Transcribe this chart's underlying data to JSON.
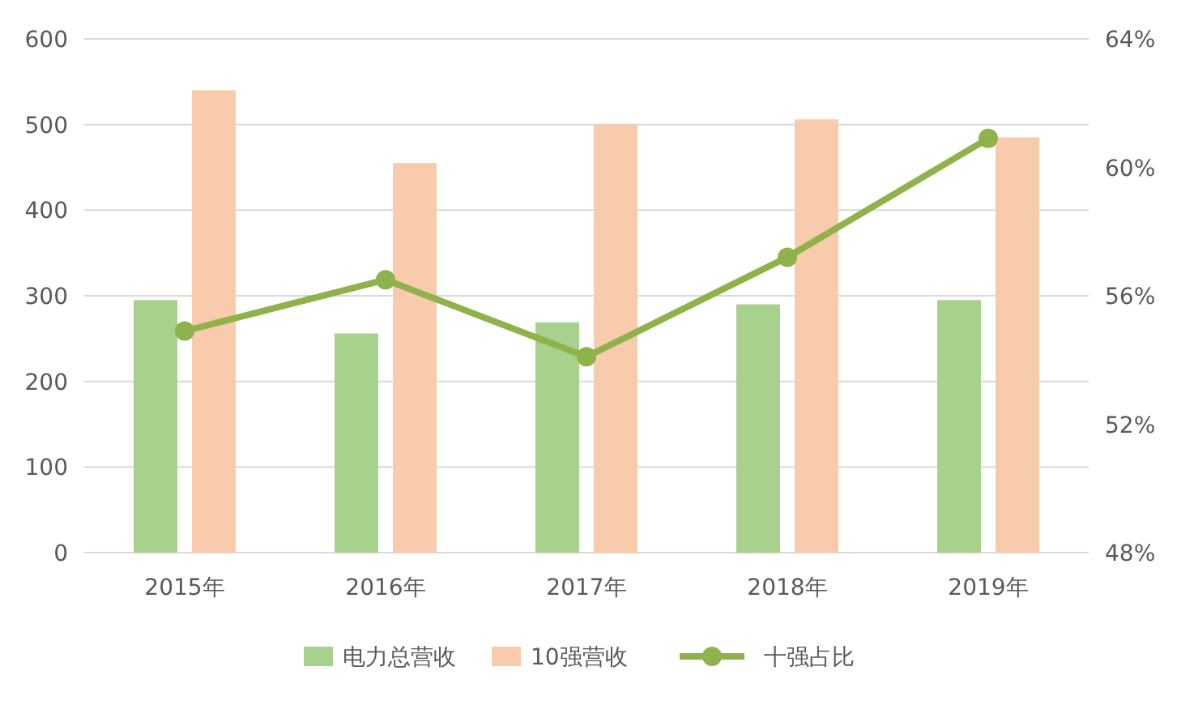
{
  "chart_data": {
    "type": "bar",
    "categories": [
      "2015年",
      "2016年",
      "2017年",
      "2018年",
      "2019年"
    ],
    "series": [
      {
        "name": "电力总营收",
        "color": "#a9d18e",
        "values": [
          295,
          256,
          269,
          290,
          295
        ]
      },
      {
        "name": "10强营收",
        "color": "#f8cbad",
        "values": [
          540,
          455,
          500,
          506,
          485
        ]
      },
      {
        "name": "十强占比",
        "type": "line",
        "axis": "y2",
        "color": "#8fb24a",
        "marker": "circle",
        "values": [
          54.9,
          56.5,
          54.1,
          57.2,
          60.9
        ]
      }
    ],
    "ylim": [
      0,
      600
    ],
    "yticks": [
      0,
      100,
      200,
      300,
      400,
      500,
      600
    ],
    "y2lim": [
      48,
      64
    ],
    "y2ticks": [
      {
        "value": 48,
        "label": "48%"
      },
      {
        "value": 52,
        "label": "52%"
      },
      {
        "value": 56,
        "label": "56%"
      },
      {
        "value": 60,
        "label": "60%"
      },
      {
        "value": 64,
        "label": "64%"
      }
    ],
    "grid": "y",
    "legend": "bottom"
  }
}
